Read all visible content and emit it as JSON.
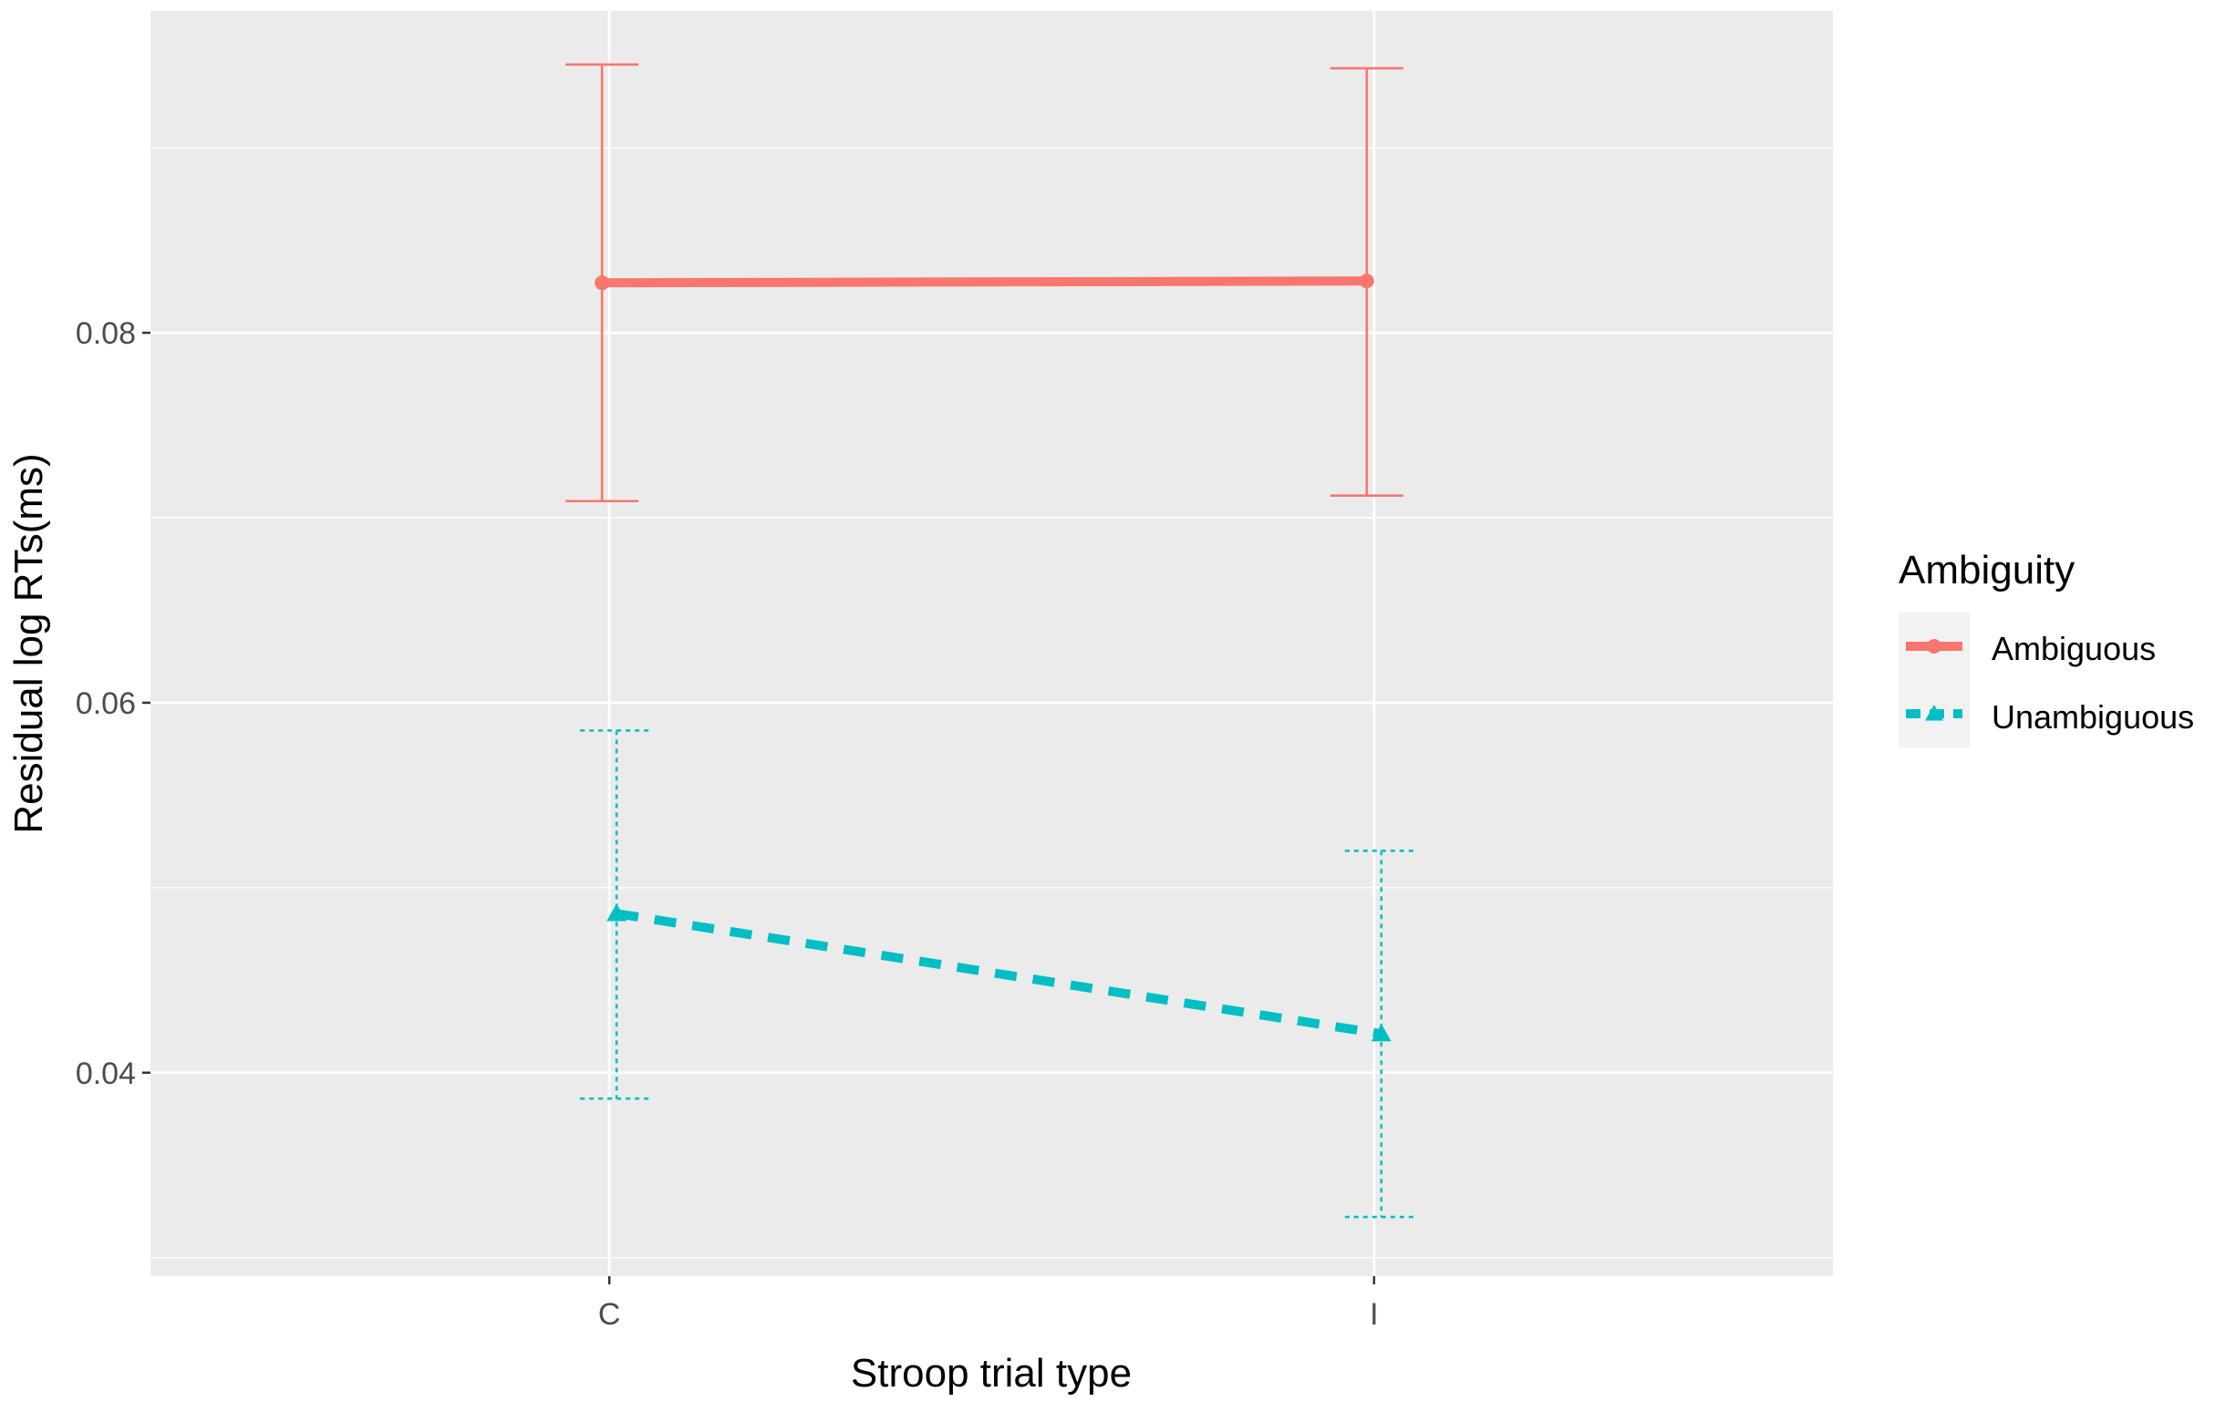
{
  "chart_data": {
    "type": "line",
    "title": "",
    "xlabel": "Stroop trial type",
    "ylabel": "Residual log RTs(ms)",
    "categories": [
      "C",
      "I"
    ],
    "y_ticks": [
      0.04,
      0.06,
      0.08
    ],
    "y_tick_labels": [
      "0.04",
      "0.06",
      "0.08"
    ],
    "ylim": [
      0.029,
      0.0974
    ],
    "grid": true,
    "legend": {
      "title": "Ambiguity",
      "position": "right"
    },
    "series": [
      {
        "name": "Ambiguous",
        "values": [
          0.0827,
          0.0828
        ],
        "ci_low": [
          0.0709,
          0.0712
        ],
        "ci_high": [
          0.0945,
          0.0943
        ],
        "color": "#F8766D",
        "linestyle": "solid",
        "marker": "circle"
      },
      {
        "name": "Unambiguous",
        "values": [
          0.0486,
          0.0421
        ],
        "ci_low": [
          0.0386,
          0.0322
        ],
        "ci_high": [
          0.0585,
          0.052
        ],
        "color": "#00BFC4",
        "linestyle": "dashed",
        "marker": "triangle"
      }
    ]
  }
}
